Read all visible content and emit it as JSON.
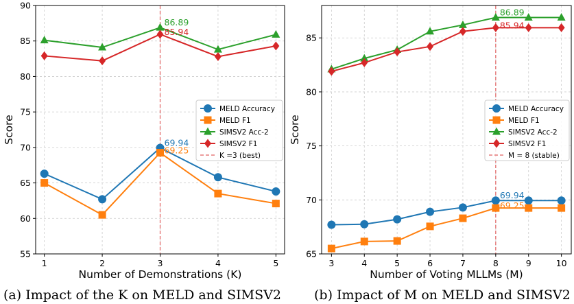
{
  "chart_data": [
    {
      "type": "line",
      "caption": "(a) Impact of the K on MELD and SIMSV2",
      "xlabel": "Number of Demonstrations (K)",
      "ylabel": "Score",
      "x": [
        1,
        2,
        3,
        4,
        5
      ],
      "xlim": [
        0.85,
        5.15
      ],
      "ylim": [
        55,
        90
      ],
      "yticks": [
        55,
        60,
        65,
        70,
        75,
        80,
        85,
        90
      ],
      "grid": true,
      "legend_position": "center-right",
      "series": [
        {
          "name": "MELD Accuracy",
          "color": "#1f77b4",
          "marker": "circle",
          "values": [
            66.3,
            62.7,
            69.94,
            65.8,
            63.8
          ]
        },
        {
          "name": "MELD F1",
          "color": "#ff7f0e",
          "marker": "square",
          "values": [
            65.0,
            60.5,
            69.25,
            63.5,
            62.1
          ]
        },
        {
          "name": "SIMSV2 Acc-2",
          "color": "#2ca02c",
          "marker": "triangle",
          "values": [
            85.1,
            84.1,
            86.89,
            83.8,
            85.9
          ]
        },
        {
          "name": "SIMSV2 F1",
          "color": "#d62728",
          "marker": "diamond",
          "values": [
            82.9,
            82.2,
            85.94,
            82.8,
            84.3
          ]
        }
      ],
      "vline": {
        "x": 3,
        "label": "K =3 (best)",
        "color": "#e06060"
      },
      "annotations": [
        {
          "x": 3,
          "y": 86.89,
          "text": "86.89",
          "color": "#2ca02c"
        },
        {
          "x": 3,
          "y": 85.94,
          "text": "85.94",
          "color": "#d62728"
        },
        {
          "x": 3,
          "y": 69.94,
          "text": "69.94",
          "color": "#1f77b4"
        },
        {
          "x": 3,
          "y": 69.25,
          "text": "69.25",
          "color": "#ff7f0e"
        }
      ]
    },
    {
      "type": "line",
      "caption": "(b) Impact of M on MELD and SIMSV2",
      "xlabel": "Number of Voting MLLMs (M)",
      "ylabel": "Score",
      "x": [
        3,
        4,
        5,
        6,
        7,
        8,
        9,
        10
      ],
      "xlim": [
        2.7,
        10.3
      ],
      "ylim": [
        65,
        88
      ],
      "yticks": [
        65,
        70,
        75,
        80,
        85
      ],
      "grid": true,
      "legend_position": "center-right",
      "series": [
        {
          "name": "MELD Accuracy",
          "color": "#1f77b4",
          "marker": "circle",
          "values": [
            67.7,
            67.75,
            68.2,
            68.9,
            69.3,
            69.94,
            69.94,
            69.94
          ]
        },
        {
          "name": "MELD F1",
          "color": "#ff7f0e",
          "marker": "square",
          "values": [
            65.5,
            66.15,
            66.2,
            67.55,
            68.3,
            69.25,
            69.25,
            69.25
          ]
        },
        {
          "name": "SIMSV2 Acc-2",
          "color": "#2ca02c",
          "marker": "triangle",
          "values": [
            82.1,
            83.1,
            83.9,
            85.6,
            86.2,
            86.89,
            86.89,
            86.89
          ]
        },
        {
          "name": "SIMSV2 F1",
          "color": "#d62728",
          "marker": "diamond",
          "values": [
            81.9,
            82.7,
            83.7,
            84.2,
            85.6,
            85.94,
            85.94,
            85.94
          ]
        }
      ],
      "vline": {
        "x": 8,
        "label": "M = 8 (stable)",
        "color": "#e06060"
      },
      "annotations": [
        {
          "x": 8,
          "y": 86.89,
          "text": "86.89",
          "color": "#2ca02c"
        },
        {
          "x": 8,
          "y": 85.94,
          "text": "85.94",
          "color": "#d62728"
        },
        {
          "x": 8,
          "y": 69.94,
          "text": "69.94",
          "color": "#1f77b4"
        },
        {
          "x": 8,
          "y": 69.25,
          "text": "69.25",
          "color": "#ff7f0e"
        }
      ]
    }
  ]
}
